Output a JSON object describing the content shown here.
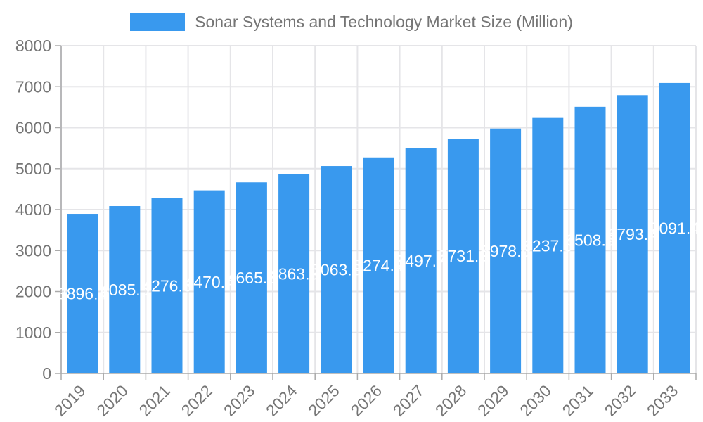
{
  "legend": {
    "label": "Sonar Systems and Technology Market Size (Million)",
    "swatch_color": "#3999EE"
  },
  "chart_data": {
    "type": "bar",
    "title": "Sonar Systems and Technology Market Size (Million)",
    "categories": [
      "2019",
      "2020",
      "2021",
      "2022",
      "2023",
      "2024",
      "2025",
      "2026",
      "2027",
      "2028",
      "2029",
      "2030",
      "2031",
      "2032",
      "2033"
    ],
    "values": [
      3896.4,
      4085.5,
      4276.3,
      4470.4,
      4665.3,
      4863.3,
      5063.6,
      5274.4,
      5497.7,
      5731.3,
      5978.6,
      6237.5,
      6508.9,
      6793.4,
      7091.4
    ],
    "xlabel": "",
    "ylabel": "",
    "ylim": [
      0,
      8000
    ],
    "y_ticks": [
      0,
      1000,
      2000,
      3000,
      4000,
      5000,
      6000,
      7000,
      8000
    ],
    "grid": true,
    "legend_position": "top",
    "x_label_rotation": -45,
    "bar_color": "#3999EE",
    "value_label_color": "#ffffff",
    "axis_text_color": "#757575",
    "grid_color": "#e5e5e8",
    "axis_line_color": "#aaaaaa"
  }
}
